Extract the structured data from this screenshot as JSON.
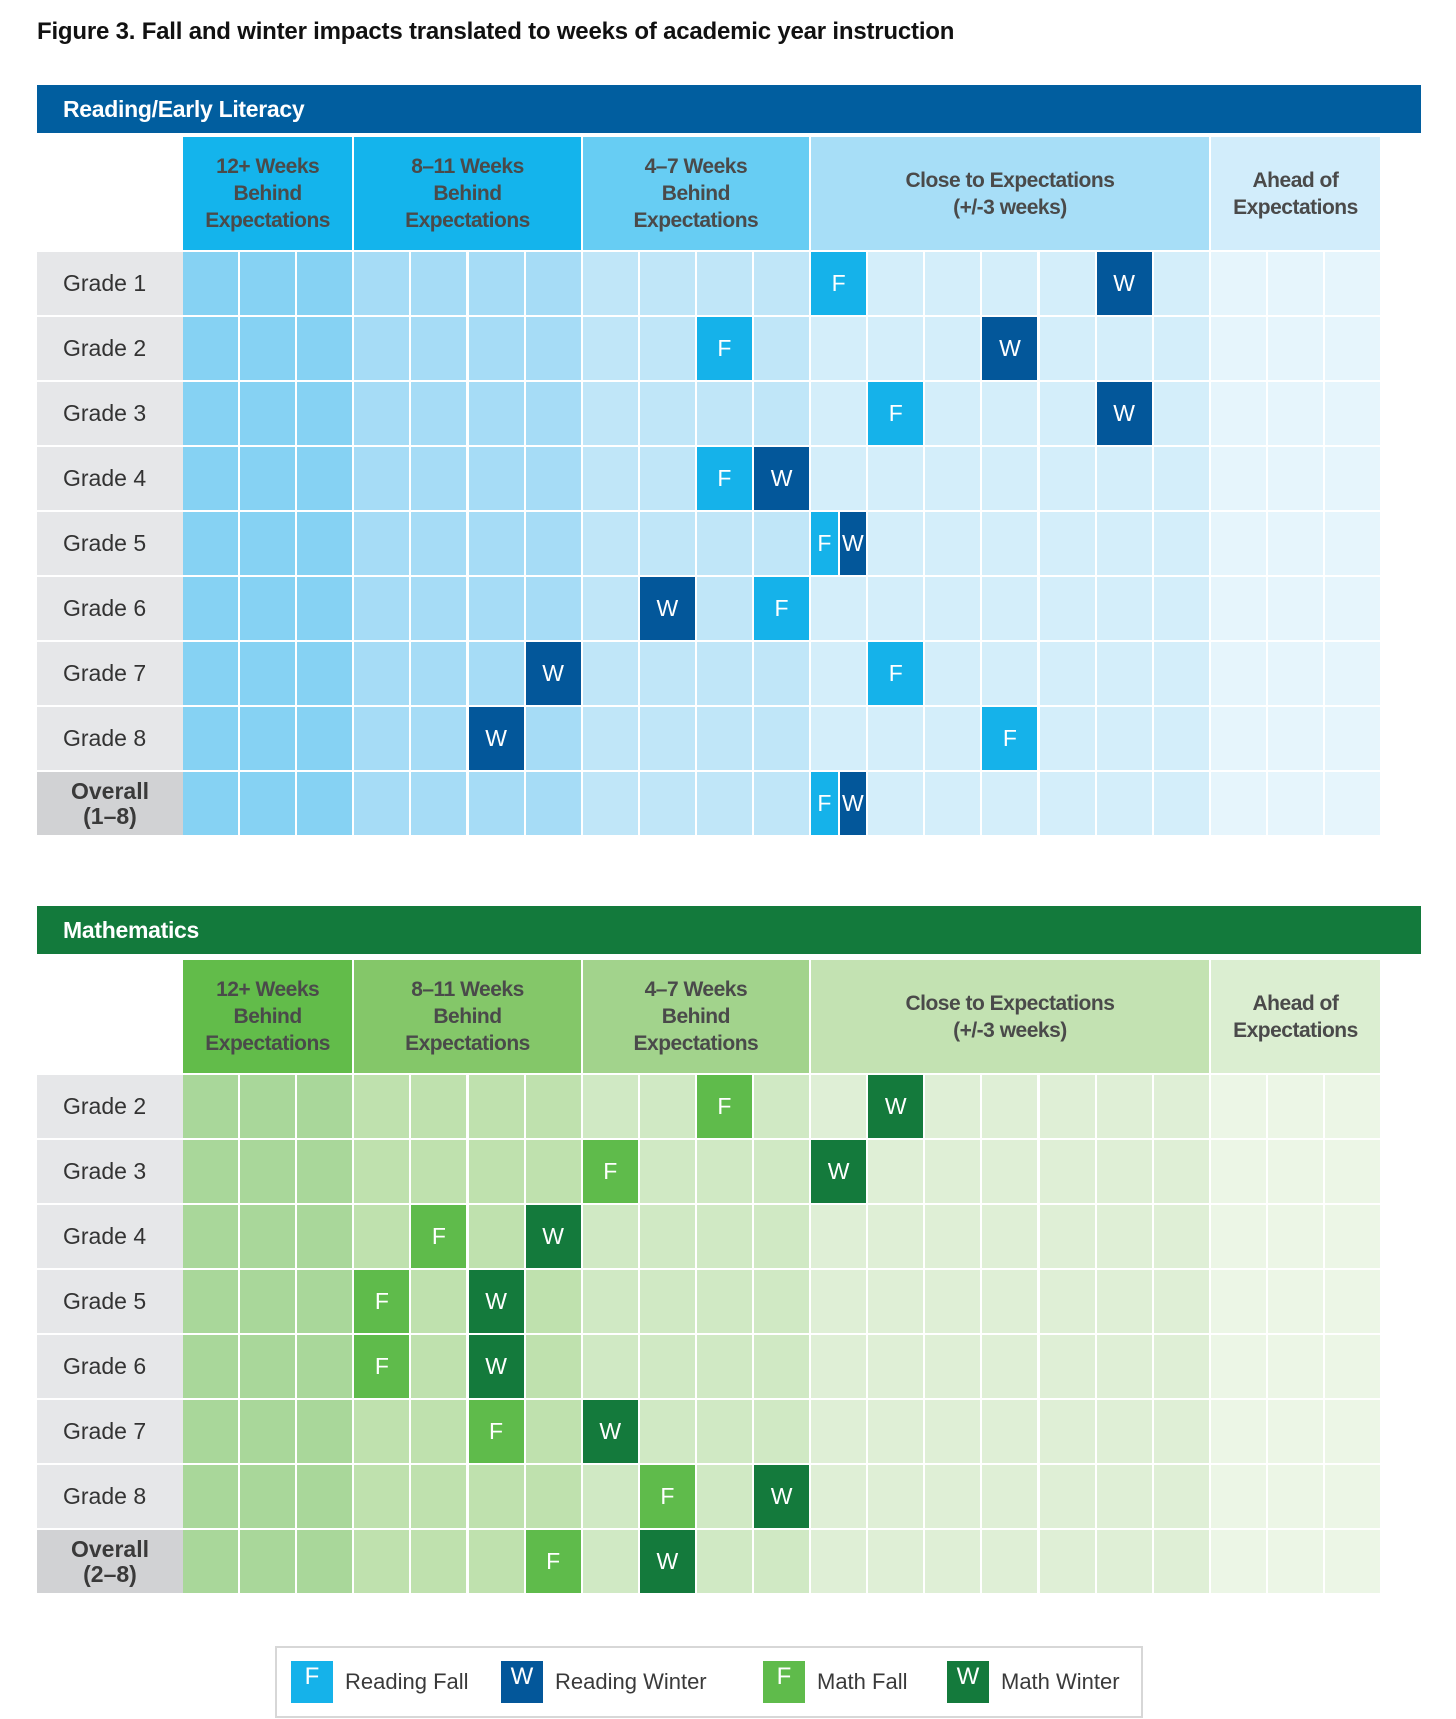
{
  "title": "Figure 3. Fall and winter impacts translated to weeks of academic year instruction",
  "marker_letters": {
    "fall": "F",
    "winter": "W"
  },
  "chart_data": [
    {
      "type": "heatmap",
      "title": "Reading/Early Literacy",
      "scheme": "blue",
      "unit": "weeks of academic year instruction",
      "column_groups": [
        {
          "label": "12+ Weeks\nBehind\nExpectations",
          "columns": 3
        },
        {
          "label": "8–11 Weeks\nBehind\nExpectations",
          "columns": 4
        },
        {
          "label": "4–7 Weeks\nBehind\nExpectations",
          "columns": 4
        },
        {
          "label": "Close to Expectations\n(+/-3 weeks)",
          "columns": 7
        },
        {
          "label": "Ahead of\nExpectations",
          "columns": 3
        }
      ],
      "rows": [
        {
          "label": "Grade 1",
          "fall": [
            11
          ],
          "winter": [
            16
          ]
        },
        {
          "label": "Grade 2",
          "fall": [
            9
          ],
          "winter": [
            14
          ]
        },
        {
          "label": "Grade 3",
          "fall": [
            12
          ],
          "winter": [
            16
          ]
        },
        {
          "label": "Grade 4",
          "fall": [
            9
          ],
          "winter": [
            10
          ]
        },
        {
          "label": "Grade 5",
          "fall": [
            11
          ],
          "winter": [
            11
          ],
          "split": true
        },
        {
          "label": "Grade 6",
          "fall": [
            10
          ],
          "winter": [
            8
          ]
        },
        {
          "label": "Grade 7",
          "fall": [
            12
          ],
          "winter": [
            6
          ]
        },
        {
          "label": "Grade 8",
          "fall": [
            14
          ],
          "winter": [
            5
          ]
        },
        {
          "label": "Overall\n(1–8)",
          "fall": [
            11
          ],
          "winter": [
            11
          ],
          "split": true,
          "overall": true
        }
      ]
    },
    {
      "type": "heatmap",
      "title": "Mathematics",
      "scheme": "green",
      "unit": "weeks of academic year instruction",
      "column_groups": [
        {
          "label": "12+ Weeks\nBehind\nExpectations",
          "columns": 3
        },
        {
          "label": "8–11 Weeks\nBehind\nExpectations",
          "columns": 4
        },
        {
          "label": "4–7 Weeks\nBehind\nExpectations",
          "columns": 4
        },
        {
          "label": "Close to Expectations\n(+/-3 weeks)",
          "columns": 7
        },
        {
          "label": "Ahead of\nExpectations",
          "columns": 3
        }
      ],
      "rows": [
        {
          "label": "Grade 2",
          "fall": [
            9
          ],
          "winter": [
            12
          ]
        },
        {
          "label": "Grade 3",
          "fall": [
            7
          ],
          "winter": [
            11
          ]
        },
        {
          "label": "Grade 4",
          "fall": [
            4
          ],
          "winter": [
            6
          ]
        },
        {
          "label": "Grade 5",
          "fall": [
            3
          ],
          "winter": [
            5
          ]
        },
        {
          "label": "Grade 6",
          "fall": [
            3
          ],
          "winter": [
            5
          ]
        },
        {
          "label": "Grade 7",
          "fall": [
            5
          ],
          "winter": [
            7
          ]
        },
        {
          "label": "Grade 8",
          "fall": [
            8
          ],
          "winter": [
            10
          ]
        },
        {
          "label": "Overall\n(2–8)",
          "fall": [
            6
          ],
          "winter": [
            8
          ],
          "overall": true
        }
      ]
    }
  ],
  "legend": [
    {
      "letter": "F",
      "label": "Reading Fall",
      "color": "#15b2ea"
    },
    {
      "letter": "W",
      "label": "Reading Winter",
      "color": "#03579a"
    },
    {
      "letter": "F",
      "label": "Math Fall",
      "color": "#5fbb4b"
    },
    {
      "letter": "W",
      "label": "Math Winter",
      "color": "#147a3c"
    }
  ],
  "colors": {
    "blue": {
      "bar": "#015e9f",
      "header": [
        "#14b4ec",
        "#14b4ec",
        "#67cdf3",
        "#a7def7",
        "#d2edfb"
      ],
      "cells": [
        "#86d2f3",
        "#a6dcf6",
        "#c0e6f8",
        "#d4eefa",
        "#e6f5fc"
      ],
      "fall": "#15b2ea",
      "winter": "#03579a"
    },
    "green": {
      "bar": "#137a3c",
      "header": [
        "#62bc4a",
        "#84c769",
        "#a2d38c",
        "#c3e2b2",
        "#dbeed1"
      ],
      "cells": [
        "#a9d79a",
        "#bfe1ae",
        "#d0e9c4",
        "#dfefd6",
        "#ecf6e6"
      ],
      "fall": "#5fbb4b",
      "winter": "#147a3c"
    },
    "rowlabel": "#e6e7e9",
    "rowlabel_overall": "#d1d2d4"
  }
}
